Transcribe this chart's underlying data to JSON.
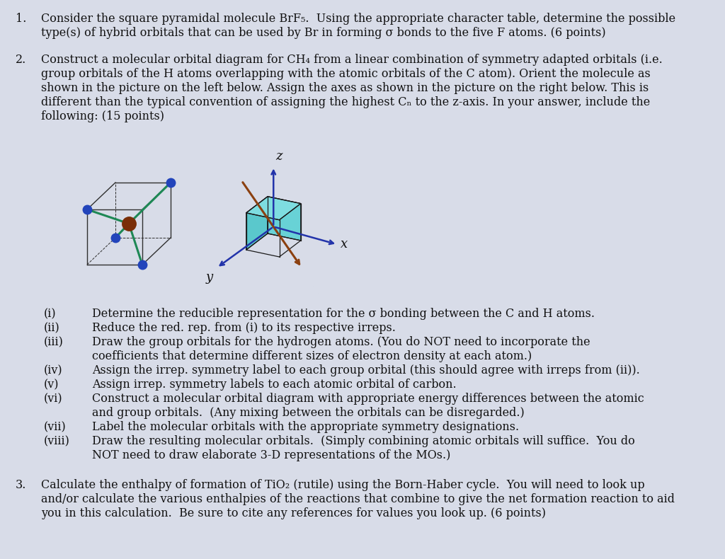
{
  "bg_color": "#d8dce8",
  "text_color": "#111111",
  "body_fontsize": 11.5,
  "q1_number": "1.",
  "q1_line1": "Consider the square pyramidal molecule BrF₅.  Using the appropriate character table, determine the possible",
  "q1_line2": "type(s) of hybrid orbitals that can be used by Br in forming σ bonds to the five F atoms. (6 points)",
  "q2_number": "2.",
  "q2_line1": "Construct a molecular orbital diagram for CH₄ from a linear combination of symmetry adapted orbitals (i.e.",
  "q2_line2": "group orbitals of the H atoms overlapping with the atomic orbitals of the C atom). Orient the molecule as",
  "q2_line3": "shown in the picture on the left below. Assign the axes as shown in the picture on the right below. This is",
  "q2_line4": "different than the typical convention of assigning the highest Cₙ to the z-axis. In your answer, include the",
  "q2_line5": "following: (15 points)",
  "sub_items": [
    [
      "(i)",
      "Determine the reducible representation for the σ bonding between the C and H atoms."
    ],
    [
      "(ii)",
      "Reduce the red. rep. from (i) to its respective irreps."
    ],
    [
      "(iii)",
      "Draw the group orbitals for the hydrogen atoms. (You do NOT need to incorporate the"
    ],
    [
      "",
      "coefficients that determine different sizes of electron density at each atom.)"
    ],
    [
      "(iv)",
      "Assign the irrep. symmetry label to each group orbital (this should agree with irreps from (ii))."
    ],
    [
      "(v)",
      "Assign irrep. symmetry labels to each atomic orbital of carbon."
    ],
    [
      "(vi)",
      "Construct a molecular orbital diagram with appropriate energy differences between the atomic"
    ],
    [
      "",
      "and group orbitals.  (Any mixing between the orbitals can be disregarded.)"
    ],
    [
      "(vii)",
      "Label the molecular orbitals with the appropriate symmetry designations."
    ],
    [
      "(viii)",
      "Draw the resulting molecular orbitals.  (Simply combining atomic orbitals will suffice.  You do"
    ],
    [
      "",
      "NOT need to draw elaborate 3-D representations of the MOs.)"
    ]
  ],
  "q3_number": "3.",
  "q3_line1": "Calculate the enthalpy of formation of TiO₂ (rutile) using the Born-Haber cycle.  You will need to look up",
  "q3_line2": "and/or calculate the various enthalpies of the reactions that combine to give the net formation reaction to aid",
  "q3_line3": "you in this calculation.  Be sure to cite any references for values you look up. (6 points)"
}
